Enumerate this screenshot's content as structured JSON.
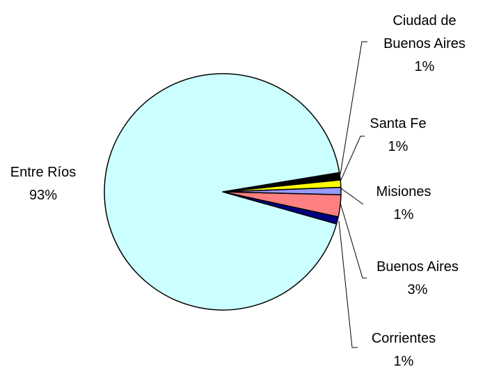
{
  "chart_data": {
    "type": "pie",
    "categories": [
      "Entre Ríos",
      "Ciudad de Buenos Aires",
      "Santa Fe",
      "Misiones",
      "Buenos Aires",
      "Corrientes"
    ],
    "values": [
      93,
      1,
      1,
      1,
      3,
      1
    ],
    "value_labels": [
      "93%",
      "1%",
      "1%",
      "1%",
      "3%",
      "1%"
    ],
    "colors": [
      "#ccffff",
      "#000000",
      "#ffff00",
      "#9999ff",
      "#ff8080",
      "#000080"
    ]
  }
}
